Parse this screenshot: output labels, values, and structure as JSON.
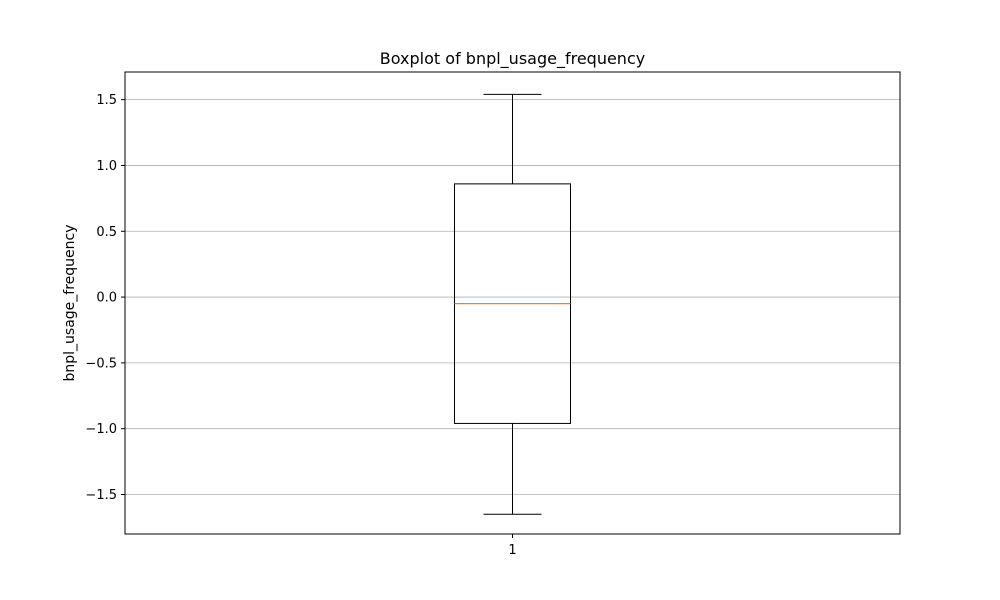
{
  "chart_data": {
    "type": "boxplot",
    "title": "Boxplot of bnpl_usage_frequency",
    "xlabel": "",
    "ylabel": "bnpl_usage_frequency",
    "categories": [
      "1"
    ],
    "boxes": [
      {
        "category": "1",
        "whisker_low": -1.65,
        "q1": -0.96,
        "median": -0.05,
        "q3": 0.86,
        "whisker_high": 1.54
      }
    ],
    "ylim": [
      -1.8,
      1.71
    ],
    "yticks": [
      -1.5,
      -1.0,
      -0.5,
      0.0,
      0.5,
      1.0,
      1.5
    ],
    "ytick_labels": [
      "−1.5",
      "−1.0",
      "−0.5",
      "0.0",
      "0.5",
      "1.0",
      "1.5"
    ],
    "grid": "y",
    "legend": "none",
    "colors": {
      "box": "#000000",
      "median": "#ff7f0e",
      "grid": "#b0b0b0"
    }
  }
}
